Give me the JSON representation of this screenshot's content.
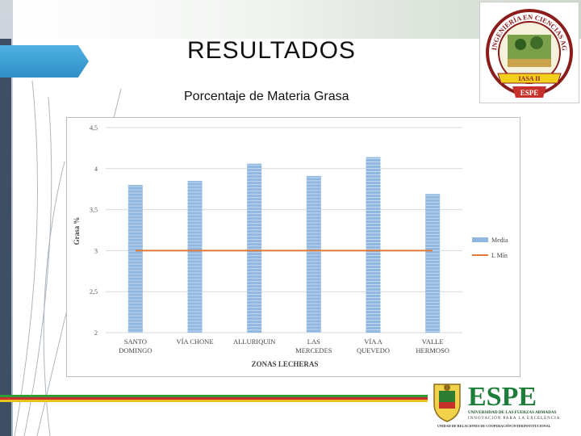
{
  "slide": {
    "title": "RESULTADOS",
    "subtitle": "Porcentaje de Materia Grasa"
  },
  "logos": {
    "top_right": {
      "ring_text": "INGENIERÍA EN CIENCIAS AGROPECUARIAS",
      "banner_text": "IASA II",
      "bottom_text": "ESPE"
    },
    "bottom_right": {
      "wordmark": "ESPE",
      "line1": "UNIVERSIDAD DE LAS FUERZAS ARMADAS",
      "line2": "INNOVACIÓN PARA LA EXCELENCIA",
      "line3": "UNIDAD DE RELACIONES DE COOPERACIÓN INTERINSTITUCIONAL"
    }
  },
  "colors": {
    "bar": "#8fb7e0",
    "line": "#e07a3a",
    "grid": "#d9d9d9"
  },
  "chart_data": {
    "type": "bar",
    "title": "",
    "xlabel": "ZONAS LECHERAS",
    "ylabel": "Grasa %",
    "ylim": [
      2,
      4.5
    ],
    "yticks": [
      "2",
      "2,5",
      "3",
      "3,5",
      "4",
      "4,5"
    ],
    "ytick_values": [
      2,
      2.5,
      3,
      3.5,
      4,
      4.5
    ],
    "grid": true,
    "legend_position": "right",
    "categories": [
      [
        "SANTO",
        "DOMINGO"
      ],
      [
        "VÍA CHONE"
      ],
      [
        "ALLURIQUIN"
      ],
      [
        "LAS",
        "MERCEDES"
      ],
      [
        "VÍA A",
        "QUEVEDO"
      ],
      [
        "VALLE",
        "HERMOSO"
      ]
    ],
    "series": [
      {
        "name": "Media",
        "kind": "bar",
        "values": [
          3.8,
          3.85,
          4.06,
          3.91,
          4.14,
          3.69
        ]
      },
      {
        "name": "L Mín",
        "kind": "line",
        "values": [
          3,
          3,
          3,
          3,
          3,
          3
        ]
      }
    ]
  }
}
